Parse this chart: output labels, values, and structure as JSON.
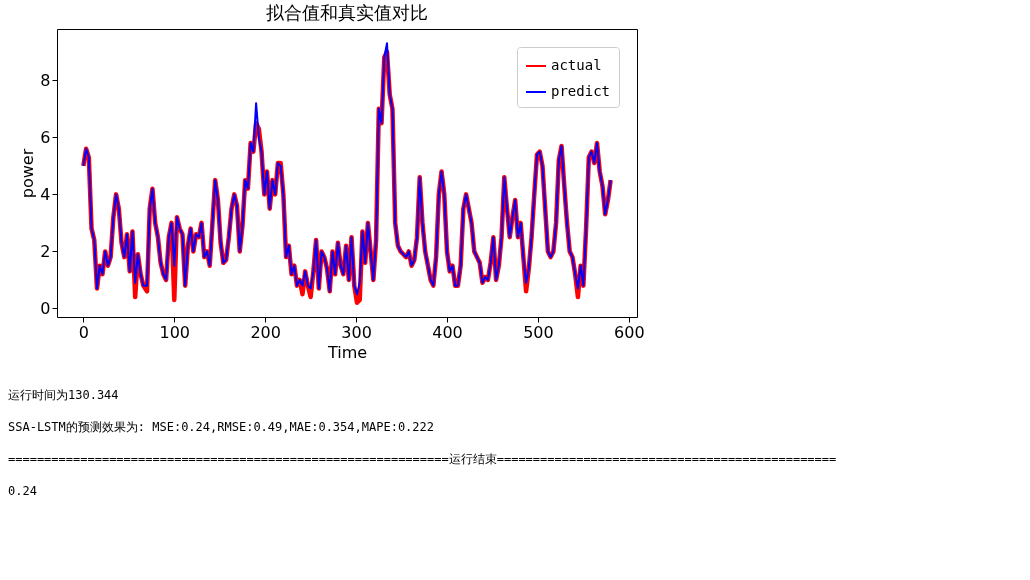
{
  "chart_data": {
    "type": "line",
    "title": "拟合值和真实值对比",
    "xlabel": "Time",
    "ylabel": "power",
    "x": [
      0,
      3,
      6,
      9,
      12,
      15,
      18,
      21,
      24,
      27,
      30,
      33,
      36,
      39,
      42,
      45,
      48,
      51,
      54,
      57,
      60,
      63,
      66,
      70,
      73,
      76,
      79,
      82,
      85,
      88,
      91,
      94,
      97,
      100,
      103,
      106,
      109,
      112,
      115,
      118,
      121,
      124,
      127,
      130,
      133,
      136,
      139,
      142,
      145,
      148,
      151,
      154,
      157,
      160,
      163,
      166,
      169,
      172,
      175,
      178,
      181,
      184,
      187,
      190,
      193,
      196,
      199,
      202,
      205,
      208,
      211,
      214,
      217,
      220,
      223,
      226,
      229,
      232,
      235,
      238,
      241,
      244,
      247,
      250,
      253,
      256,
      259,
      262,
      265,
      268,
      271,
      274,
      277,
      280,
      283,
      286,
      289,
      292,
      295,
      298,
      301,
      304,
      307,
      310,
      313,
      316,
      319,
      322,
      325,
      328,
      331,
      334,
      337,
      340,
      343,
      346,
      349,
      352,
      355,
      358,
      361,
      364,
      367,
      370,
      373,
      376,
      379,
      382,
      385,
      388,
      391,
      394,
      397,
      400,
      403,
      406,
      409,
      412,
      415,
      418,
      421,
      424,
      427,
      430,
      433,
      436,
      439,
      442,
      445,
      448,
      451,
      454,
      457,
      460,
      463,
      466,
      469,
      472,
      475,
      478,
      481,
      484,
      487,
      490,
      493,
      496,
      499,
      502,
      505,
      508,
      511,
      514,
      517,
      520,
      523,
      526,
      529,
      532,
      535,
      538,
      541,
      544,
      547,
      550,
      553,
      556,
      559,
      562,
      565,
      568,
      571,
      574,
      577,
      580
    ],
    "series": [
      {
        "name": "actual",
        "color": "#ff0000",
        "values": [
          5.0,
          5.6,
          5.3,
          2.8,
          2.4,
          0.7,
          1.5,
          1.2,
          2.0,
          1.5,
          1.8,
          3.2,
          4.0,
          3.5,
          2.3,
          1.8,
          2.6,
          1.3,
          2.7,
          0.4,
          1.9,
          1.2,
          0.8,
          0.6,
          3.5,
          4.2,
          3.0,
          2.5,
          1.6,
          1.2,
          1.0,
          2.5,
          3.0,
          0.3,
          3.2,
          2.8,
          2.6,
          0.8,
          2.2,
          2.8,
          2.0,
          2.6,
          2.5,
          3.0,
          1.8,
          2.0,
          1.5,
          3.0,
          4.5,
          3.8,
          2.3,
          1.6,
          1.7,
          2.5,
          3.5,
          4.0,
          3.6,
          2.0,
          2.9,
          4.5,
          4.2,
          5.8,
          5.5,
          6.5,
          6.3,
          5.5,
          4.0,
          4.8,
          3.5,
          4.5,
          4.0,
          5.1,
          5.1,
          4.0,
          1.8,
          2.2,
          1.2,
          1.5,
          0.8,
          1.0,
          0.5,
          1.3,
          0.8,
          0.4,
          1.3,
          2.4,
          0.7,
          2.0,
          1.8,
          1.4,
          0.6,
          2.0,
          1.2,
          2.3,
          1.5,
          1.2,
          2.2,
          1.0,
          2.5,
          0.8,
          0.2,
          0.3,
          2.7,
          1.6,
          3.0,
          2.0,
          1.0,
          2.4,
          7.0,
          6.5,
          8.8,
          9.0,
          7.5,
          7.0,
          3.0,
          2.2,
          2.0,
          1.9,
          1.8,
          2.0,
          1.5,
          1.7,
          2.5,
          4.6,
          3.0,
          2.0,
          1.5,
          1.0,
          0.8,
          1.8,
          4.0,
          4.8,
          4.0,
          2.0,
          1.3,
          1.5,
          0.8,
          0.8,
          1.5,
          3.5,
          4.0,
          3.5,
          3.0,
          2.0,
          1.8,
          1.6,
          0.9,
          1.1,
          1.0,
          1.6,
          2.5,
          1.0,
          1.5,
          2.5,
          4.6,
          3.5,
          2.5,
          3.2,
          3.8,
          2.5,
          3.0,
          1.8,
          0.6,
          1.4,
          2.5,
          4.0,
          5.4,
          5.5,
          5.0,
          3.5,
          2.0,
          1.8,
          2.0,
          3.0,
          5.2,
          5.7,
          4.3,
          3.0,
          2.0,
          1.8,
          1.2,
          0.4,
          1.5,
          0.8,
          2.8,
          5.3,
          5.5,
          5.1,
          5.8,
          4.8,
          4.3,
          3.3,
          3.8,
          4.5
        ]
      },
      {
        "name": "predict",
        "color": "#0000ff",
        "values": [
          5.0,
          5.6,
          5.3,
          2.8,
          2.4,
          0.7,
          1.5,
          1.2,
          2.0,
          1.5,
          1.8,
          3.2,
          4.0,
          3.5,
          2.3,
          1.8,
          2.6,
          1.3,
          2.7,
          0.9,
          1.9,
          1.2,
          0.8,
          0.8,
          3.5,
          4.2,
          3.0,
          2.5,
          1.6,
          1.2,
          1.0,
          2.5,
          3.0,
          1.5,
          3.2,
          2.8,
          2.6,
          0.8,
          2.2,
          2.8,
          2.0,
          2.6,
          2.5,
          3.0,
          1.8,
          2.0,
          1.5,
          3.0,
          4.5,
          3.8,
          2.3,
          1.6,
          1.7,
          2.5,
          3.5,
          4.0,
          3.6,
          2.0,
          2.9,
          4.5,
          4.2,
          5.8,
          5.5,
          7.2,
          6.0,
          5.5,
          4.0,
          4.8,
          3.5,
          4.5,
          4.0,
          5.1,
          5.0,
          4.0,
          1.8,
          2.2,
          1.2,
          1.5,
          0.8,
          1.0,
          0.8,
          1.3,
          0.8,
          0.7,
          1.3,
          2.4,
          0.7,
          2.0,
          1.8,
          1.4,
          0.6,
          2.0,
          1.2,
          2.3,
          1.5,
          1.2,
          2.2,
          1.0,
          2.5,
          0.8,
          0.5,
          0.9,
          2.7,
          1.6,
          3.0,
          2.0,
          1.0,
          2.4,
          7.0,
          6.5,
          8.8,
          9.3,
          7.5,
          7.0,
          3.0,
          2.2,
          2.0,
          1.9,
          1.8,
          2.0,
          1.5,
          1.7,
          2.5,
          4.6,
          3.0,
          2.0,
          1.5,
          1.0,
          0.8,
          1.8,
          4.0,
          4.8,
          4.0,
          2.0,
          1.3,
          1.5,
          0.8,
          0.8,
          1.5,
          3.5,
          4.0,
          3.5,
          3.0,
          2.0,
          1.8,
          1.6,
          0.9,
          1.1,
          1.0,
          1.6,
          2.5,
          1.0,
          1.5,
          2.5,
          4.6,
          3.5,
          2.5,
          3.2,
          3.8,
          2.5,
          3.0,
          1.8,
          0.9,
          1.4,
          2.5,
          4.0,
          5.4,
          5.5,
          5.0,
          3.5,
          2.0,
          1.8,
          2.0,
          3.0,
          5.2,
          5.7,
          4.3,
          3.0,
          2.0,
          1.8,
          1.2,
          0.7,
          1.5,
          0.8,
          2.8,
          5.3,
          5.5,
          5.1,
          5.8,
          4.8,
          4.3,
          3.3,
          3.8,
          4.5
        ]
      }
    ],
    "xlim": [
      -29,
      609
    ],
    "ylim": [
      -0.3,
      9.8
    ],
    "xticks": [
      0,
      100,
      200,
      300,
      400,
      500,
      600
    ],
    "yticks": [
      0,
      2,
      4,
      6,
      8
    ],
    "grid": false,
    "legend": "top right",
    "marker": "none",
    "line_style": "solid",
    "annotations": [
      "运行时间为130.344",
      "SSA-LSTM的预测效果为: MSE:0.24,RMSE:0.49,MAE:0.354,MAPE:0.222",
      "=============================================================运行结束===============================================",
      "0.24"
    ]
  }
}
